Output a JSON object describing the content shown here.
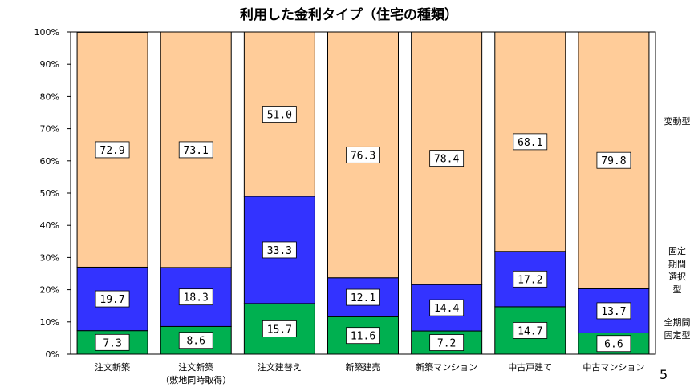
{
  "chart_data": {
    "type": "bar",
    "stacked": true,
    "title": "利用した金利タイプ（住宅の種類）",
    "categories": [
      "注文新築",
      "注文新築\n（敷地同時取得）",
      "注文建替え",
      "新築建売",
      "新築マンション",
      "中古戸建て",
      "中古マンション"
    ],
    "series": [
      {
        "name": "全期間固定型",
        "color": "#00b050",
        "values": [
          7.3,
          8.6,
          15.7,
          11.6,
          7.2,
          14.7,
          6.6
        ]
      },
      {
        "name": "固定期間選択型",
        "color": "#3333ff",
        "values": [
          19.7,
          18.3,
          33.3,
          12.1,
          14.4,
          17.2,
          13.7
        ]
      },
      {
        "name": "変動型",
        "color": "#ffcc99",
        "values": [
          72.9,
          73.1,
          51.0,
          76.3,
          78.4,
          68.1,
          79.8
        ]
      }
    ],
    "ylim": [
      0,
      100
    ],
    "yticks": [
      "0%",
      "10%",
      "20%",
      "30%",
      "40%",
      "50%",
      "60%",
      "70%",
      "80%",
      "90%",
      "100%"
    ],
    "legend_position": "right",
    "grid": false
  },
  "legend": {
    "variable": "変動型",
    "fixed_period": [
      "固定",
      "期間",
      "選択",
      "型"
    ],
    "full_fixed": [
      "全期間",
      "固定型"
    ]
  },
  "page_number": "5"
}
